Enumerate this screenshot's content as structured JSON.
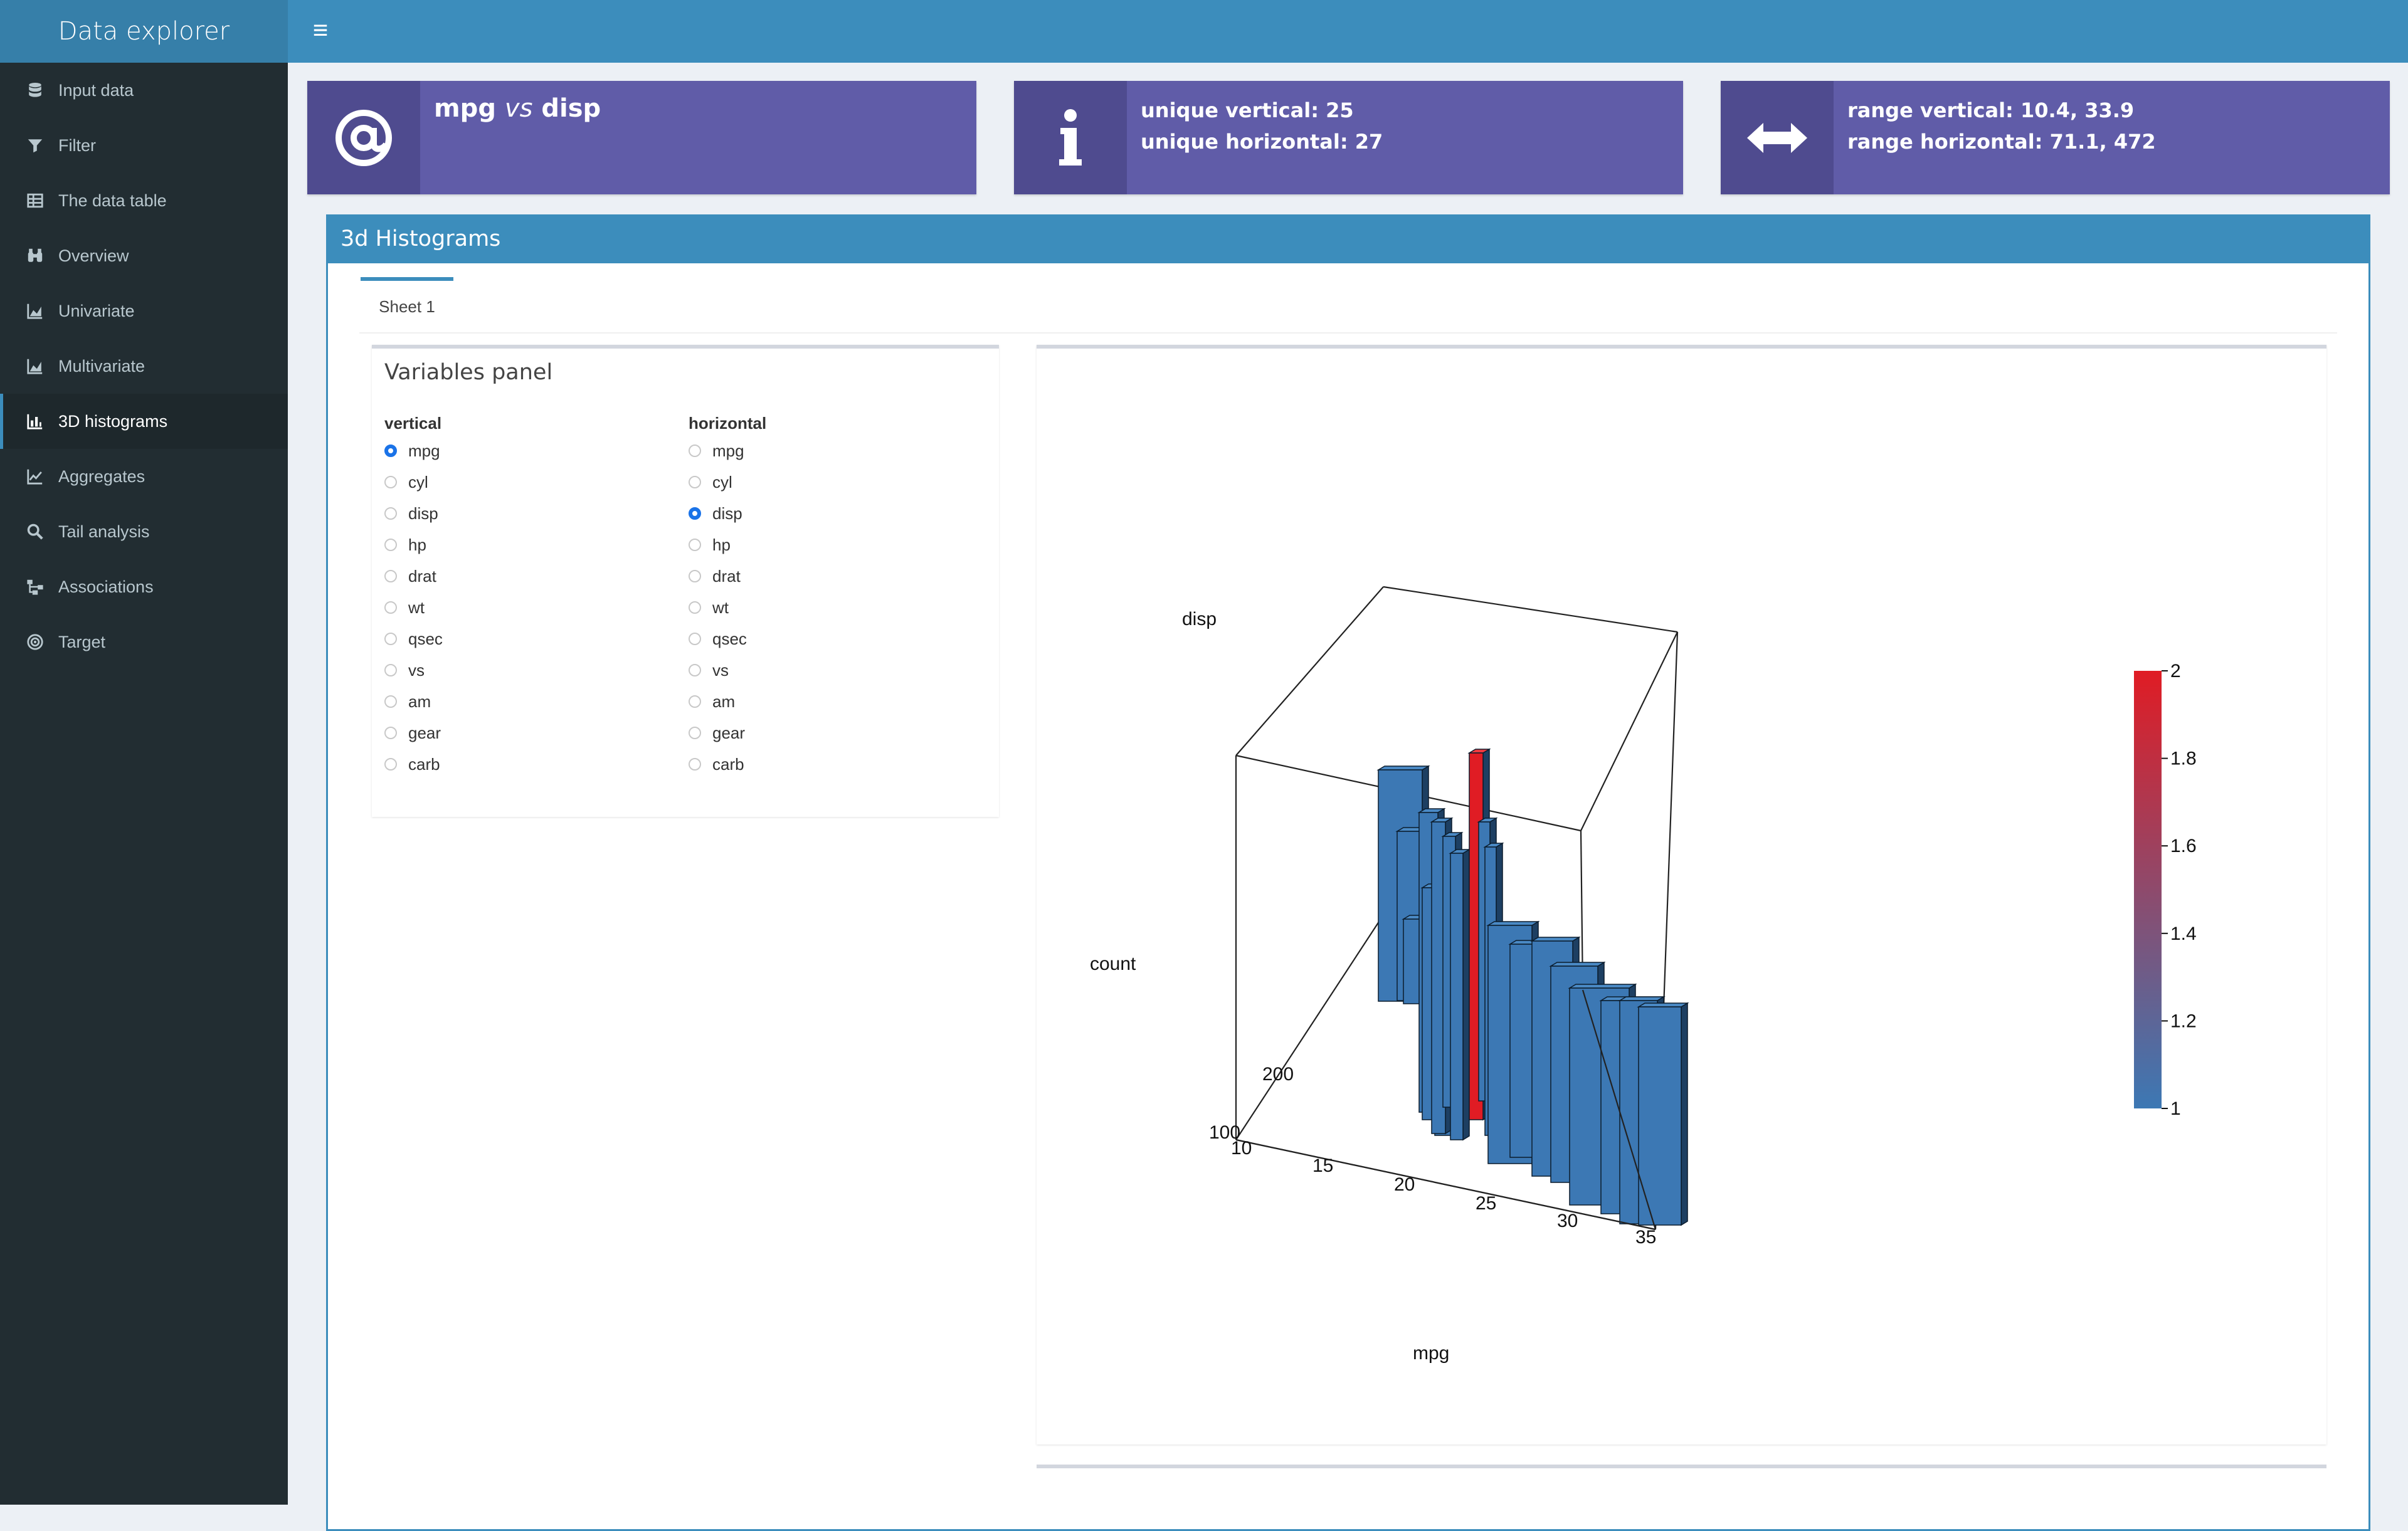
{
  "header": {
    "title": "Data explorer"
  },
  "sidebar": {
    "items": [
      {
        "label": "Input data",
        "icon": "database-icon"
      },
      {
        "label": "Filter",
        "icon": "filter-icon"
      },
      {
        "label": "The data table",
        "icon": "table-icon"
      },
      {
        "label": "Overview",
        "icon": "binoculars-icon"
      },
      {
        "label": "Univariate",
        "icon": "area-chart-icon"
      },
      {
        "label": "Multivariate",
        "icon": "area-chart-icon"
      },
      {
        "label": "3D histograms",
        "icon": "bar-chart-icon",
        "active": true
      },
      {
        "label": "Aggregates",
        "icon": "line-chart-icon"
      },
      {
        "label": "Tail analysis",
        "icon": "search-icon"
      },
      {
        "label": "Associations",
        "icon": "sitemap-icon"
      },
      {
        "label": "Target",
        "icon": "bullseye-icon"
      }
    ]
  },
  "infoboxes": {
    "vars": {
      "var1": "mpg",
      "vs": "vs",
      "var2": "disp"
    },
    "unique": {
      "line1": "unique vertical: 25",
      "line2": "unique horizontal: 27"
    },
    "range": {
      "line1": "range vertical: 10.4, 33.9",
      "line2": "range horizontal: 71.1, 472"
    }
  },
  "box": {
    "title": "3d Histograms",
    "tab": "Sheet 1"
  },
  "variables_panel": {
    "title": "Variables panel",
    "vertical_label": "vertical",
    "horizontal_label": "horizontal",
    "options": [
      "mpg",
      "cyl",
      "disp",
      "hp",
      "drat",
      "wt",
      "qsec",
      "vs",
      "am",
      "gear",
      "carb"
    ],
    "vertical_selected": "mpg",
    "horizontal_selected": "disp"
  },
  "chart_data": {
    "type": "3d-bar",
    "xlabel": "mpg",
    "ylabel": "disp",
    "zlabel": "count",
    "x_ticks": [
      "10",
      "15",
      "20",
      "25",
      "30",
      "35"
    ],
    "y_ticks": [
      "100",
      "200"
    ],
    "colorbar": {
      "ticks": [
        "2",
        "1.8",
        "1.6",
        "1.4",
        "1.2",
        "1"
      ],
      "min": 1,
      "max": 2,
      "low_color": "#3c78b4",
      "high_color": "#e01c24"
    },
    "bar_color": "#3c78b4",
    "highlight_color": "#e01c24"
  }
}
